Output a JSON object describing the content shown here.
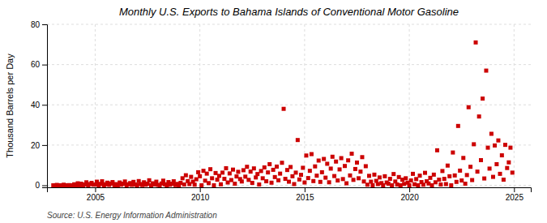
{
  "chart_data": {
    "type": "scatter",
    "title": "Monthly U.S. Exports to Bahama Islands of Conventional Motor Gasoline",
    "y_label": "Thousand Barrels per Day",
    "annotations": [
      "Source: U.S. Energy Information Administration"
    ],
    "color": "#cc0000",
    "marker": "square",
    "grid": true,
    "xlim": [
      2002.7,
      2025.8
    ],
    "xticks": [
      2005,
      2010,
      2015,
      2020,
      2025
    ],
    "ylim": [
      -1,
      80
    ],
    "yticks": [
      0,
      20,
      40,
      60,
      80
    ],
    "x": [
      2003.0,
      2003.08,
      2003.17,
      2003.25,
      2003.33,
      2003.42,
      2003.5,
      2003.58,
      2003.67,
      2003.75,
      2003.83,
      2003.92,
      2004.0,
      2004.08,
      2004.17,
      2004.25,
      2004.33,
      2004.42,
      2004.5,
      2004.58,
      2004.67,
      2004.75,
      2004.83,
      2004.92,
      2005.0,
      2005.08,
      2005.17,
      2005.25,
      2005.33,
      2005.42,
      2005.5,
      2005.58,
      2005.67,
      2005.75,
      2005.83,
      2005.92,
      2006.0,
      2006.08,
      2006.17,
      2006.25,
      2006.33,
      2006.42,
      2006.5,
      2006.58,
      2006.67,
      2006.75,
      2006.83,
      2006.92,
      2007.0,
      2007.08,
      2007.17,
      2007.25,
      2007.33,
      2007.42,
      2007.5,
      2007.58,
      2007.67,
      2007.75,
      2007.83,
      2007.92,
      2008.0,
      2008.08,
      2008.17,
      2008.25,
      2008.33,
      2008.42,
      2008.5,
      2008.58,
      2008.67,
      2008.75,
      2008.83,
      2008.92,
      2009.0,
      2009.08,
      2009.17,
      2009.25,
      2009.33,
      2009.42,
      2009.5,
      2009.58,
      2009.67,
      2009.75,
      2009.83,
      2009.92,
      2010.0,
      2010.08,
      2010.17,
      2010.25,
      2010.33,
      2010.42,
      2010.5,
      2010.58,
      2010.67,
      2010.75,
      2010.83,
      2010.92,
      2011.0,
      2011.08,
      2011.17,
      2011.25,
      2011.33,
      2011.42,
      2011.5,
      2011.58,
      2011.67,
      2011.75,
      2011.83,
      2011.92,
      2012.0,
      2012.08,
      2012.17,
      2012.25,
      2012.33,
      2012.42,
      2012.5,
      2012.58,
      2012.67,
      2012.75,
      2012.83,
      2012.92,
      2013.0,
      2013.08,
      2013.17,
      2013.25,
      2013.33,
      2013.42,
      2013.5,
      2013.58,
      2013.67,
      2013.75,
      2013.83,
      2013.92,
      2014.0,
      2014.08,
      2014.17,
      2014.25,
      2014.33,
      2014.42,
      2014.5,
      2014.58,
      2014.67,
      2014.75,
      2014.83,
      2014.92,
      2015.0,
      2015.08,
      2015.17,
      2015.25,
      2015.33,
      2015.42,
      2015.5,
      2015.58,
      2015.67,
      2015.75,
      2015.83,
      2015.92,
      2016.0,
      2016.08,
      2016.17,
      2016.25,
      2016.33,
      2016.42,
      2016.5,
      2016.58,
      2016.67,
      2016.75,
      2016.83,
      2016.92,
      2017.0,
      2017.08,
      2017.17,
      2017.25,
      2017.33,
      2017.42,
      2017.5,
      2017.58,
      2017.67,
      2017.75,
      2017.83,
      2017.92,
      2018.0,
      2018.08,
      2018.17,
      2018.25,
      2018.33,
      2018.42,
      2018.5,
      2018.58,
      2018.67,
      2018.75,
      2018.83,
      2018.92,
      2019.0,
      2019.08,
      2019.17,
      2019.25,
      2019.33,
      2019.42,
      2019.5,
      2019.58,
      2019.67,
      2019.75,
      2019.83,
      2019.92,
      2020.0,
      2020.08,
      2020.17,
      2020.25,
      2020.33,
      2020.42,
      2020.5,
      2020.58,
      2020.67,
      2020.75,
      2020.83,
      2020.92,
      2021.0,
      2021.08,
      2021.17,
      2021.25,
      2021.33,
      2021.42,
      2021.5,
      2021.58,
      2021.67,
      2021.75,
      2021.83,
      2021.92,
      2022.0,
      2022.08,
      2022.17,
      2022.25,
      2022.33,
      2022.42,
      2022.5,
      2022.58,
      2022.67,
      2022.75,
      2022.83,
      2022.92,
      2023.0,
      2023.08,
      2023.17,
      2023.25,
      2023.33,
      2023.42,
      2023.5,
      2023.58,
      2023.67,
      2023.75,
      2023.83,
      2023.92,
      2024.0,
      2024.08,
      2024.17,
      2024.25,
      2024.33,
      2024.42,
      2024.5,
      2024.58,
      2024.67,
      2024.75,
      2024.83,
      2024.92
    ],
    "values": [
      0.0,
      0.0,
      0.2,
      0.0,
      0.0,
      0.0,
      0.3,
      0.0,
      0.0,
      0.1,
      0.0,
      0.0,
      0.5,
      0.0,
      1.0,
      0.0,
      0.8,
      0.0,
      0.4,
      1.5,
      0.0,
      0.6,
      1.2,
      0.3,
      0.4,
      1.8,
      0.0,
      0.7,
      2.0,
      0.0,
      0.5,
      1.3,
      0.2,
      0.9,
      1.6,
      0.0,
      0.6,
      0.0,
      1.4,
      0.3,
      0.8,
      1.9,
      0.0,
      0.5,
      1.1,
      0.2,
      1.7,
      0.4,
      0.0,
      2.1,
      0.6,
      0.1,
      1.5,
      0.3,
      0.8,
      2.5,
      0.0,
      1.0,
      0.4,
      1.8,
      0.2,
      0.0,
      0.9,
      2.3,
      0.5,
      0.0,
      1.6,
      0.3,
      0.8,
      2.0,
      0.1,
      0.7,
      0.0,
      1.2,
      3.5,
      0.4,
      5.0,
      2.1,
      0.6,
      4.2,
      1.8,
      0.3,
      3.0,
      6.5,
      4.5,
      0.0,
      7.2,
      2.3,
      5.8,
      1.1,
      8.0,
      3.5,
      0.0,
      6.1,
      2.8,
      4.7,
      0.5,
      6.3,
      3.2,
      8.5,
      1.4,
      5.9,
      2.6,
      7.8,
      0.8,
      4.4,
      6.7,
      3.1,
      1.9,
      7.5,
      4.3,
      9.2,
      2.7,
      6.8,
      1.2,
      8.4,
      3.9,
      5.6,
      0.4,
      7.1,
      3.5,
      8.9,
      2.0,
      6.4,
      10.5,
      1.3,
      7.7,
      4.1,
      9.3,
      2.5,
      5.8,
      11.2,
      38.0,
      3.2,
      7.6,
      1.8,
      9.1,
      4.5,
      0.6,
      6.3,
      22.5,
      2.9,
      5.2,
      8.7,
      1.4,
      14.8,
      3.6,
      7.2,
      15.5,
      2.1,
      9.4,
      4.8,
      12.3,
      1.7,
      6.5,
      13.1,
      3.8,
      10.7,
      1.5,
      8.3,
      14.2,
      4.6,
      11.8,
      2.4,
      7.9,
      13.5,
      3.1,
      9.6,
      1.0,
      12.4,
      4.9,
      15.7,
      2.7,
      8.1,
      11.3,
      3.5,
      6.8,
      14.0,
      1.9,
      9.5,
      0.3,
      4.7,
      1.8,
      0.0,
      5.3,
      2.2,
      0.6,
      3.9,
      1.1,
      0.0,
      4.5,
      1.4,
      0.8,
      3.2,
      0.0,
      5.6,
      1.9,
      0.4,
      4.1,
      0.0,
      2.8,
      0.7,
      3.5,
      1.3,
      0.0,
      2.4,
      5.7,
      0.5,
      3.1,
      0.0,
      4.8,
      1.6,
      0.3,
      6.2,
      2.0,
      0.9,
      3.7,
      0.0,
      5.3,
      1.5,
      17.4,
      2.8,
      0.4,
      7.1,
      3.2,
      0.6,
      9.8,
      4.5,
      0.0,
      16.3,
      4.9,
      1.7,
      29.5,
      7.3,
      2.4,
      13.6,
      0.8,
      5.1,
      38.8,
      9.2,
      2.6,
      20.4,
      71.0,
      6.8,
      34.2,
      12.5,
      43.1,
      3.4,
      57.0,
      18.7,
      8.3,
      25.6,
      4.2,
      19.8,
      10.5,
      22.3,
      5.7,
      14.9,
      2.8,
      20.1,
      8.6,
      11.4,
      18.7,
      6.3
    ]
  }
}
